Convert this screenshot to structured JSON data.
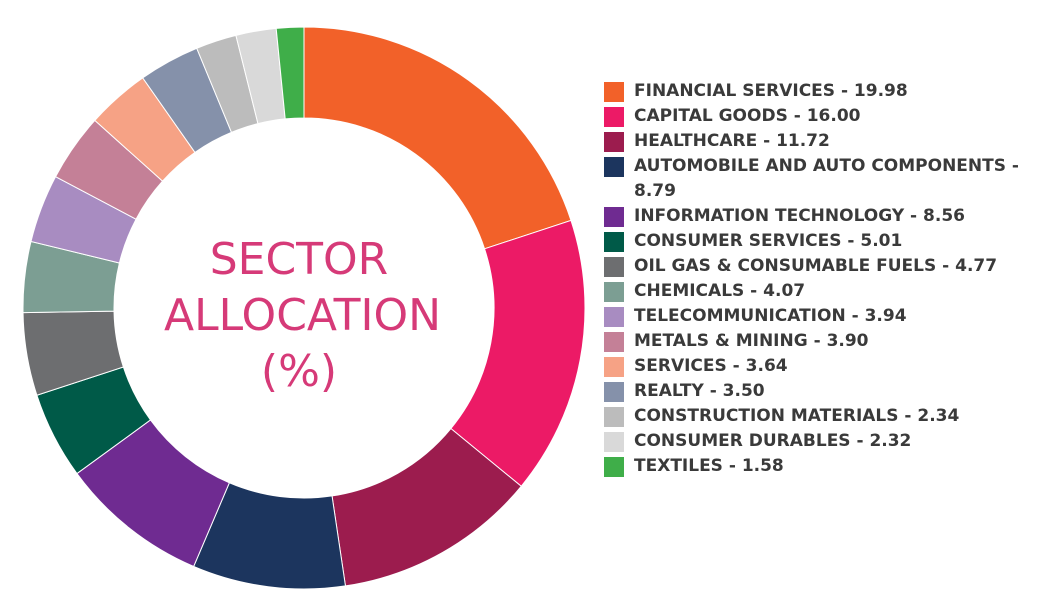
{
  "chart_data": {
    "type": "pie",
    "title_lines": [
      "SECTOR",
      "ALLOCATION",
      "(%)"
    ],
    "categories": [
      "FINANCIAL SERVICES",
      "CAPITAL GOODS",
      "HEALTHCARE",
      "AUTOMOBILE AND AUTO COMPONENTS",
      "INFORMATION TECHNOLOGY",
      "CONSUMER SERVICES",
      "OIL GAS & CONSUMABLE FUELS",
      "CHEMICALS",
      "TELECOMMUNICATION",
      "METALS & MINING",
      "SERVICES",
      "REALTY",
      "CONSTRUCTION MATERIALS",
      "CONSUMER DURABLES",
      "TEXTILES"
    ],
    "values": [
      19.98,
      16.0,
      11.72,
      8.79,
      8.56,
      5.01,
      4.77,
      4.07,
      3.94,
      3.9,
      3.64,
      3.5,
      2.34,
      2.32,
      1.58
    ],
    "value_labels": [
      "19.98",
      "16.00",
      "11.72",
      "8.79",
      "8.56",
      "5.01",
      "4.77",
      "4.07",
      "3.94",
      "3.90",
      "3.64",
      "3.50",
      "2.34",
      "2.32",
      "1.58"
    ],
    "colors": [
      "#f26129",
      "#ec1a66",
      "#9c1c4e",
      "#1c355e",
      "#6f2b91",
      "#005a48",
      "#6d6e70",
      "#7c9e93",
      "#a88cc1",
      "#c48097",
      "#f6a285",
      "#8591aa",
      "#bcbcbc",
      "#d9d9d9",
      "#3fae49"
    ],
    "legend_labels": [
      "FINANCIAL SERVICES - 19.98",
      "CAPITAL GOODS - 16.00",
      "HEALTHCARE - 11.72",
      "AUTOMOBILE AND AUTO COMPONENTS - 8.79",
      "INFORMATION TECHNOLOGY - 8.56",
      "CONSUMER SERVICES - 5.01",
      "OIL GAS & CONSUMABLE FUELS - 4.77",
      "CHEMICALS - 4.07",
      "TELECOMMUNICATION - 3.94",
      "METALS & MINING - 3.90",
      "SERVICES - 3.64",
      "REALTY - 3.50",
      "CONSTRUCTION MATERIALS - 2.34",
      "CONSUMER DURABLES - 2.32",
      "TEXTILES - 1.58"
    ],
    "legend_position": "right",
    "style": "donut"
  }
}
